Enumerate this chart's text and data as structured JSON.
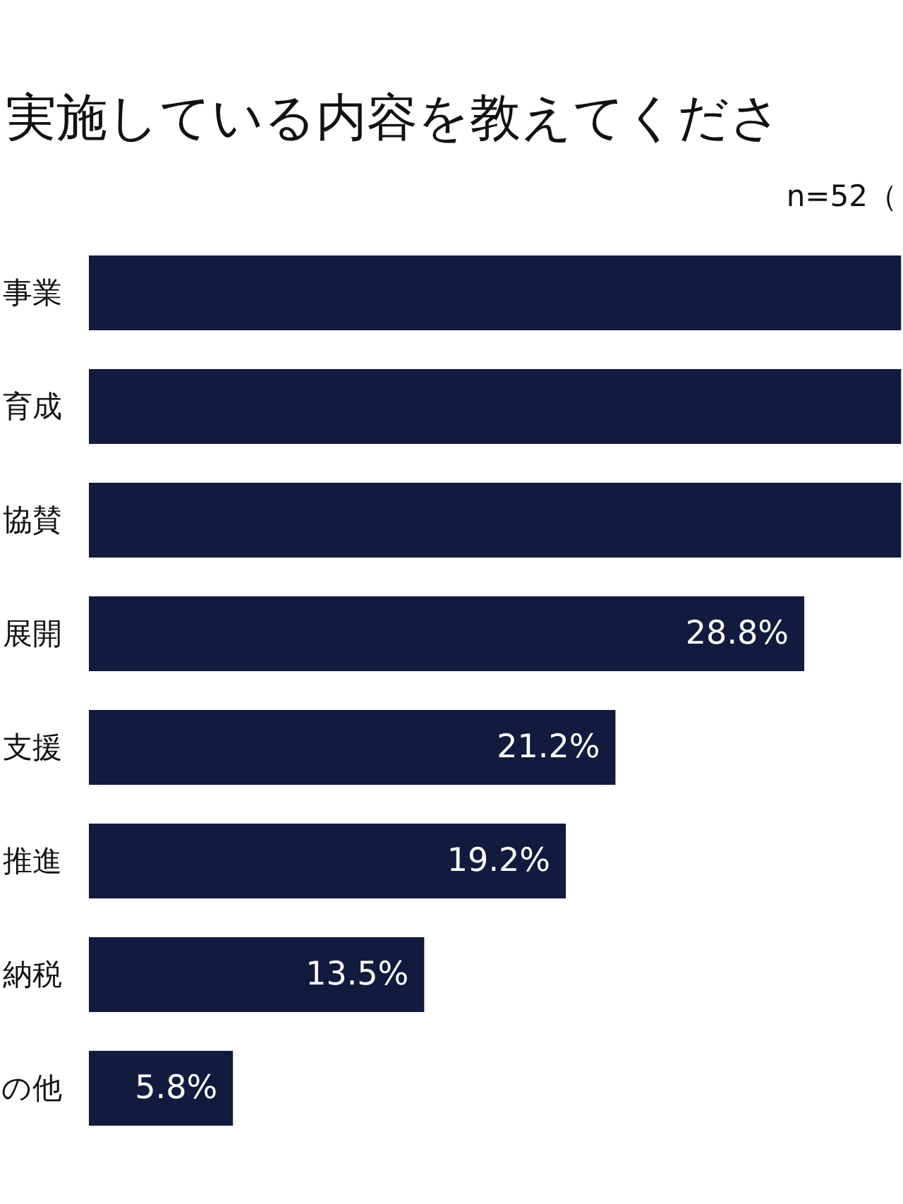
{
  "chart_data": {
    "type": "bar",
    "orientation": "horizontal",
    "title": "実施している内容を教えてくださ",
    "subtitle": "n=52（",
    "categories": [
      "事業",
      "育成",
      "協賛",
      "展開",
      "支援",
      "推進",
      "納税",
      "の他"
    ],
    "values": [
      32.7,
      32.7,
      32.7,
      28.8,
      21.2,
      19.2,
      13.5,
      5.8
    ],
    "value_labels": [
      null,
      null,
      null,
      "28.8%",
      "21.2%",
      "19.2%",
      "13.5%",
      "5.8%"
    ],
    "color": "#121a3e"
  }
}
